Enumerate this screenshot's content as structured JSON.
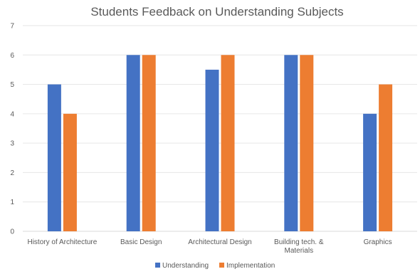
{
  "chart_data": {
    "type": "bar",
    "title": "Students Feedback on Understanding Subjects",
    "xlabel": "",
    "ylabel": "",
    "ylim": [
      0,
      7
    ],
    "y_ticks": [
      0,
      1,
      2,
      3,
      4,
      5,
      6,
      7
    ],
    "grid": true,
    "legend_position": "bottom",
    "categories": [
      [
        "History of Architecture"
      ],
      [
        "Basic Design"
      ],
      [
        "Architectural Design"
      ],
      [
        "Building tech. &",
        "Materials"
      ],
      [
        "Graphics"
      ]
    ],
    "series": [
      {
        "name": "Understanding",
        "color": "#4472C4",
        "values": [
          5,
          6,
          5.5,
          6,
          4
        ]
      },
      {
        "name": "Implementation",
        "color": "#ED7D31",
        "values": [
          4,
          6,
          6,
          6,
          5
        ]
      }
    ],
    "colors": {
      "axis": "#D9D9D9",
      "grid": "#E6E6E6",
      "text": "#595959",
      "title": "#595959"
    }
  }
}
